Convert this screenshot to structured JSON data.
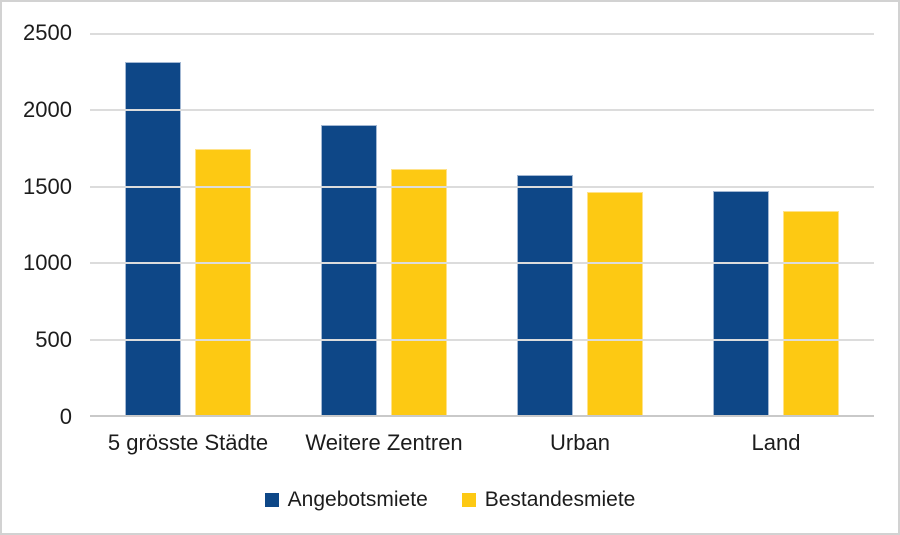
{
  "chart_data": {
    "type": "bar",
    "title": "",
    "xlabel": "",
    "ylabel": "",
    "categories": [
      "5 grösste Städte",
      "Weitere Zentren",
      "Urban",
      "Land"
    ],
    "series": [
      {
        "name": "Angebotsmiete",
        "color": "#0E4787",
        "border_color": "#A3B8D3",
        "values": [
          2300,
          1890,
          1560,
          1460
        ]
      },
      {
        "name": "Bestandesmiete",
        "color": "#FDC913",
        "border_color": "#FFE289",
        "values": [
          1730,
          1600,
          1450,
          1330
        ]
      }
    ],
    "ylim": [
      0,
      2500
    ],
    "yticks": [
      0,
      500,
      1000,
      1500,
      2000,
      2500
    ],
    "grid": "horizontal",
    "legend_position": "bottom",
    "colors": {
      "gridline": "#DCDCDC",
      "axis_line": "#C9C9C9",
      "frame_border": "#D2D2D2",
      "text": "#1C1C1C",
      "background": "#FFFFFF"
    }
  }
}
